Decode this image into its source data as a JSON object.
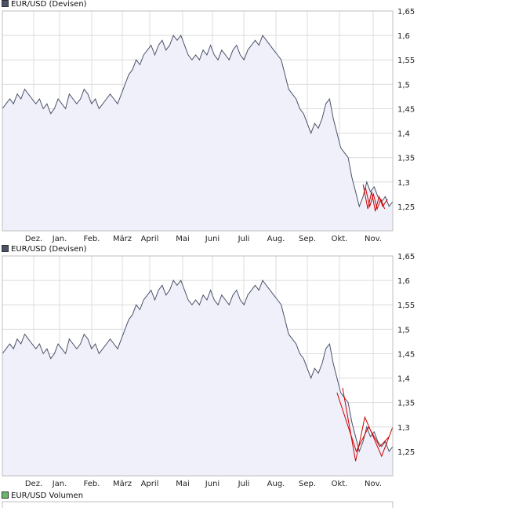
{
  "colors": {
    "line": "#4a5268",
    "area": "#f0f0fb",
    "grid": "#dcdcdc",
    "pattern": "#cc0000",
    "legend_price": "#4a5268",
    "legend_volume": "#66bb66"
  },
  "chart_data": [
    {
      "type": "area",
      "title": "EUR/USD (Devisen)",
      "x_ticks": [
        "Dez.",
        "Jan.",
        "Feb.",
        "März",
        "April",
        "Mai",
        "Juni",
        "Juli",
        "Aug.",
        "Sep.",
        "Okt.",
        "Nov."
      ],
      "y_ticks": [
        "1,65",
        "1,6",
        "1,55",
        "1,5",
        "1,45",
        "1,4",
        "1,35",
        "1,3",
        "1,25"
      ],
      "ylim": [
        1.2,
        1.65
      ],
      "grid": true,
      "series": [
        {
          "values": [
            1.45,
            1.46,
            1.47,
            1.46,
            1.48,
            1.47,
            1.49,
            1.48,
            1.47,
            1.46,
            1.47,
            1.45,
            1.46,
            1.44,
            1.45,
            1.47,
            1.46,
            1.45,
            1.48,
            1.47,
            1.46,
            1.47,
            1.49,
            1.48,
            1.46,
            1.47,
            1.45,
            1.46,
            1.47,
            1.48,
            1.47,
            1.46,
            1.48,
            1.5,
            1.52,
            1.53,
            1.55,
            1.54,
            1.56,
            1.57,
            1.58,
            1.56,
            1.58,
            1.59,
            1.57,
            1.58,
            1.6,
            1.59,
            1.6,
            1.58,
            1.56,
            1.55,
            1.56,
            1.55,
            1.57,
            1.56,
            1.58,
            1.56,
            1.55,
            1.57,
            1.56,
            1.55,
            1.57,
            1.58,
            1.56,
            1.55,
            1.57,
            1.58,
            1.59,
            1.58,
            1.6,
            1.59,
            1.58,
            1.57,
            1.56,
            1.55,
            1.52,
            1.49,
            1.48,
            1.47,
            1.45,
            1.44,
            1.42,
            1.4,
            1.42,
            1.41,
            1.43,
            1.46,
            1.47,
            1.43,
            1.4,
            1.37,
            1.36,
            1.35,
            1.31,
            1.28,
            1.25,
            1.27,
            1.3,
            1.28,
            1.29,
            1.27,
            1.26,
            1.27,
            1.25,
            1.26
          ]
        }
      ],
      "pattern_lines": [
        [
          [
            97,
            1.295
          ],
          [
            98.3,
            1.245
          ],
          [
            99.3,
            1.28
          ],
          [
            100.3,
            1.24
          ],
          [
            101.3,
            1.27
          ],
          [
            102.3,
            1.25
          ],
          [
            103.6,
            1.265
          ]
        ],
        [
          [
            97.6,
            1.29
          ],
          [
            98.8,
            1.25
          ],
          [
            99.8,
            1.275
          ],
          [
            100.8,
            1.245
          ],
          [
            101.8,
            1.265
          ],
          [
            102.8,
            1.245
          ]
        ]
      ]
    },
    {
      "type": "area",
      "title": "EUR/USD (Devisen)",
      "x_ticks": [
        "Dez.",
        "Jan.",
        "Feb.",
        "März",
        "April",
        "Mai",
        "Juni",
        "Juli",
        "Aug.",
        "Sep.",
        "Okt.",
        "Nov."
      ],
      "y_ticks": [
        "1,65",
        "1,6",
        "1,55",
        "1,5",
        "1,45",
        "1,4",
        "1,35",
        "1,3",
        "1,25"
      ],
      "ylim": [
        1.2,
        1.65
      ],
      "grid": true,
      "series": [
        {
          "values": [
            1.45,
            1.46,
            1.47,
            1.46,
            1.48,
            1.47,
            1.49,
            1.48,
            1.47,
            1.46,
            1.47,
            1.45,
            1.46,
            1.44,
            1.45,
            1.47,
            1.46,
            1.45,
            1.48,
            1.47,
            1.46,
            1.47,
            1.49,
            1.48,
            1.46,
            1.47,
            1.45,
            1.46,
            1.47,
            1.48,
            1.47,
            1.46,
            1.48,
            1.5,
            1.52,
            1.53,
            1.55,
            1.54,
            1.56,
            1.57,
            1.58,
            1.56,
            1.58,
            1.59,
            1.57,
            1.58,
            1.6,
            1.59,
            1.6,
            1.58,
            1.56,
            1.55,
            1.56,
            1.55,
            1.57,
            1.56,
            1.58,
            1.56,
            1.55,
            1.57,
            1.56,
            1.55,
            1.57,
            1.58,
            1.56,
            1.55,
            1.57,
            1.58,
            1.59,
            1.58,
            1.6,
            1.59,
            1.58,
            1.57,
            1.56,
            1.55,
            1.52,
            1.49,
            1.48,
            1.47,
            1.45,
            1.44,
            1.42,
            1.4,
            1.42,
            1.41,
            1.43,
            1.46,
            1.47,
            1.43,
            1.4,
            1.37,
            1.36,
            1.35,
            1.31,
            1.28,
            1.25,
            1.27,
            1.3,
            1.28,
            1.29,
            1.27,
            1.26,
            1.27,
            1.25,
            1.26
          ]
        }
      ],
      "pattern_lines": [
        [
          [
            91.5,
            1.38
          ],
          [
            95,
            1.23
          ],
          [
            97.5,
            1.32
          ],
          [
            102,
            1.24
          ],
          [
            105,
            1.3
          ]
        ],
        [
          [
            90,
            1.37
          ],
          [
            95.2,
            1.25
          ],
          [
            98.5,
            1.3
          ],
          [
            101.5,
            1.26
          ],
          [
            104,
            1.28
          ]
        ]
      ]
    },
    {
      "type": "bar",
      "title": "EUR/USD Volumen"
    }
  ]
}
